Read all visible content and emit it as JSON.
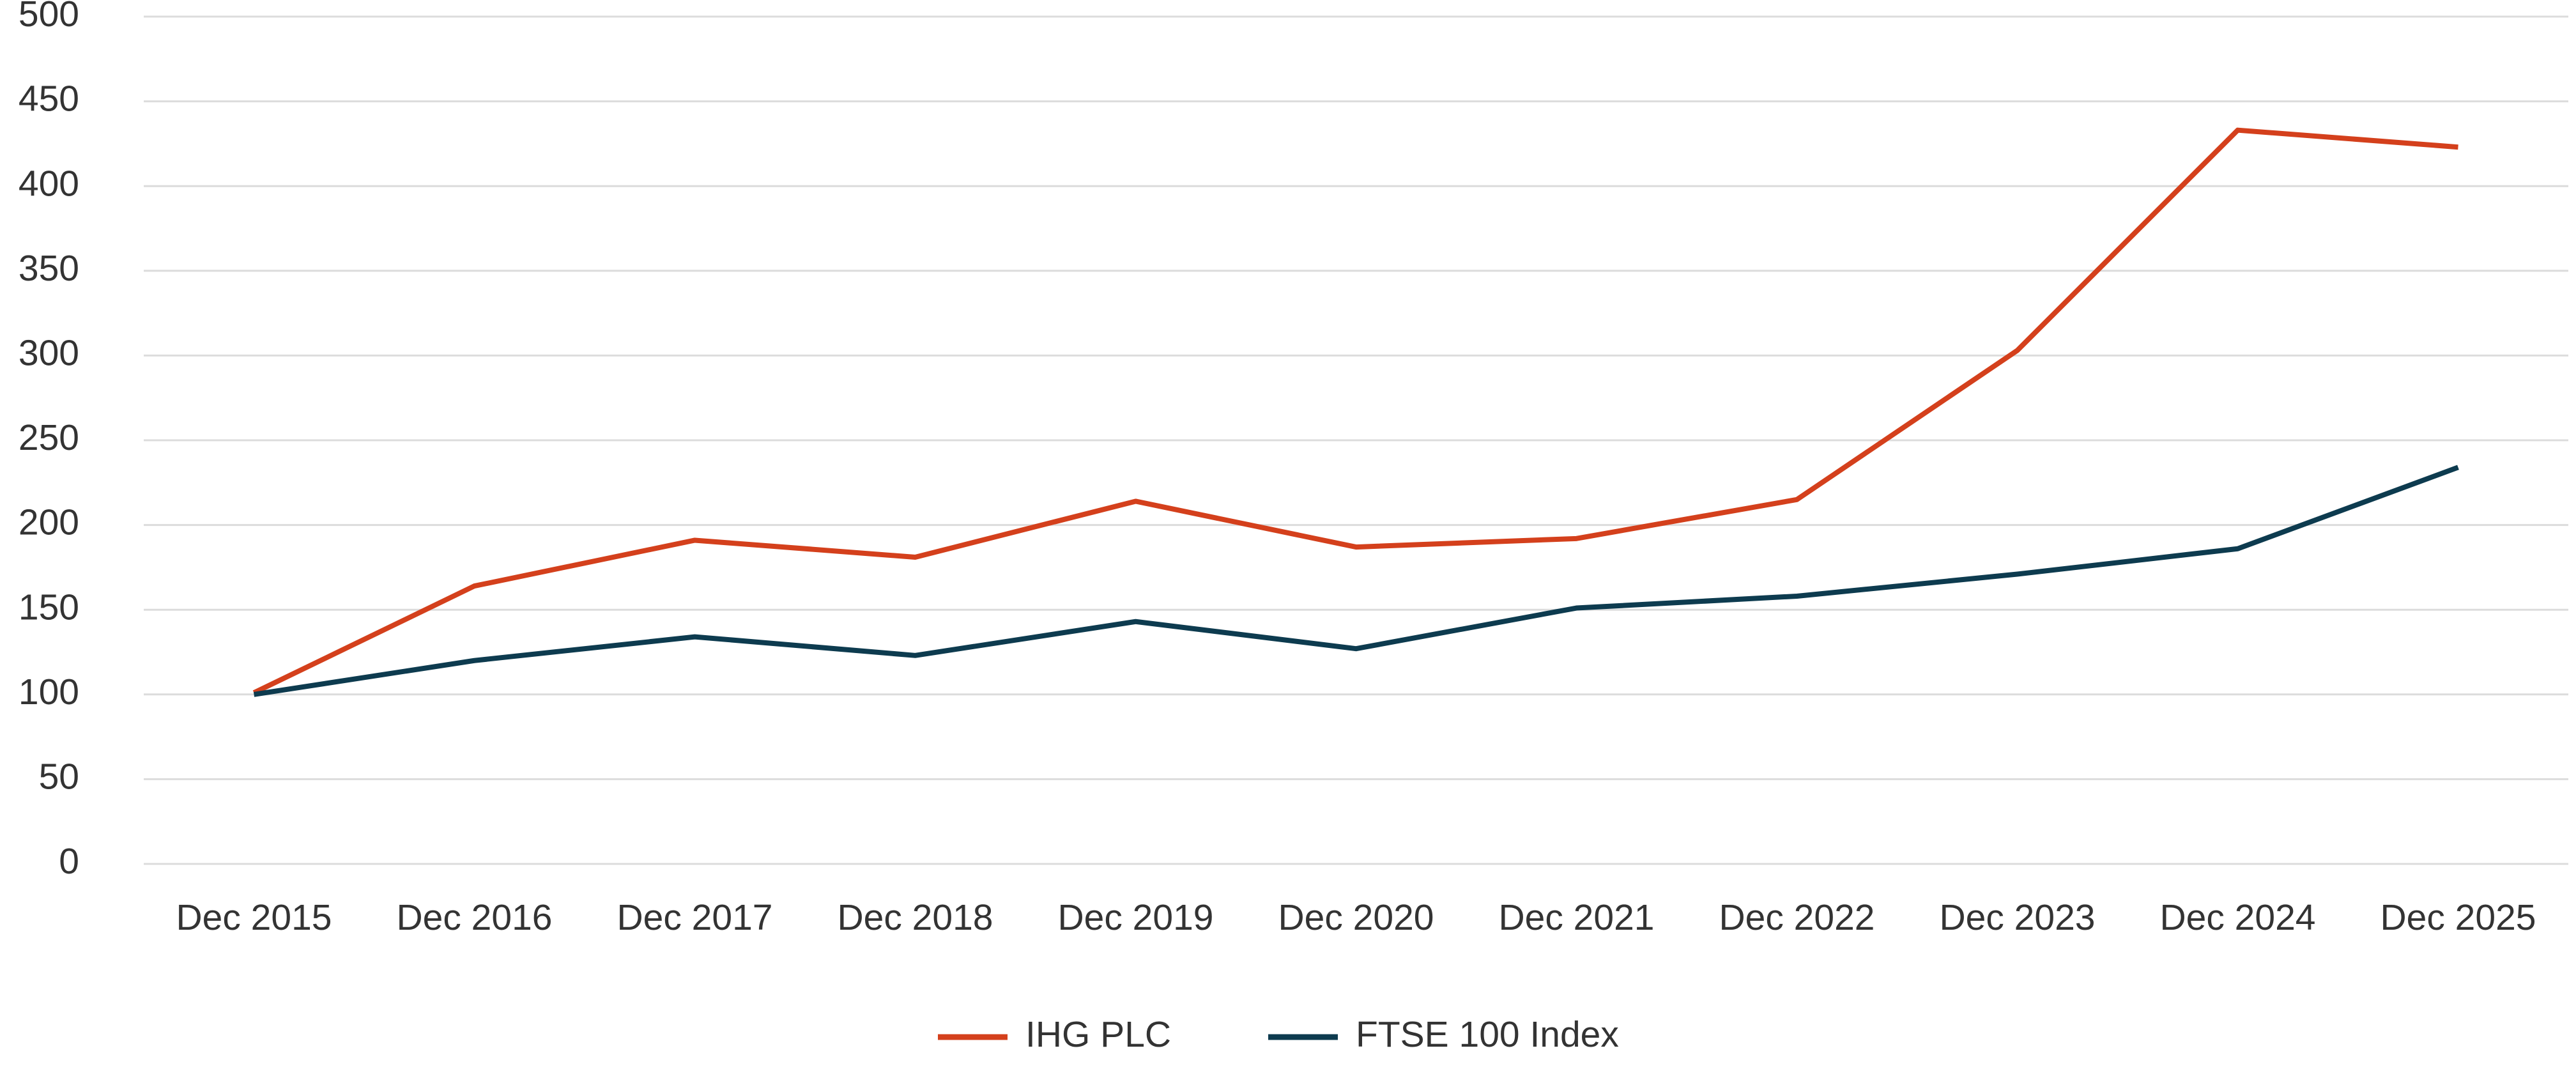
{
  "chart_data": {
    "type": "line",
    "categories": [
      "Dec 2015",
      "Dec 2016",
      "Dec 2017",
      "Dec 2018",
      "Dec 2019",
      "Dec 2020",
      "Dec 2021",
      "Dec 2022",
      "Dec 2023",
      "Dec 2024",
      "Dec 2025"
    ],
    "series": [
      {
        "name": "IHG PLC",
        "color": "#d4401c",
        "values": [
          101,
          164,
          191,
          181,
          214,
          187,
          192,
          215,
          303,
          433,
          423
        ]
      },
      {
        "name": "FTSE 100 Index",
        "color": "#0d3b4f",
        "values": [
          100,
          120,
          134,
          123,
          143,
          127,
          151,
          158,
          171,
          186,
          234
        ]
      }
    ],
    "ylim": [
      0,
      500
    ],
    "yticks": [
      0,
      50,
      100,
      150,
      200,
      250,
      300,
      350,
      400,
      450,
      500
    ],
    "grid": true,
    "legend": "bottom"
  }
}
